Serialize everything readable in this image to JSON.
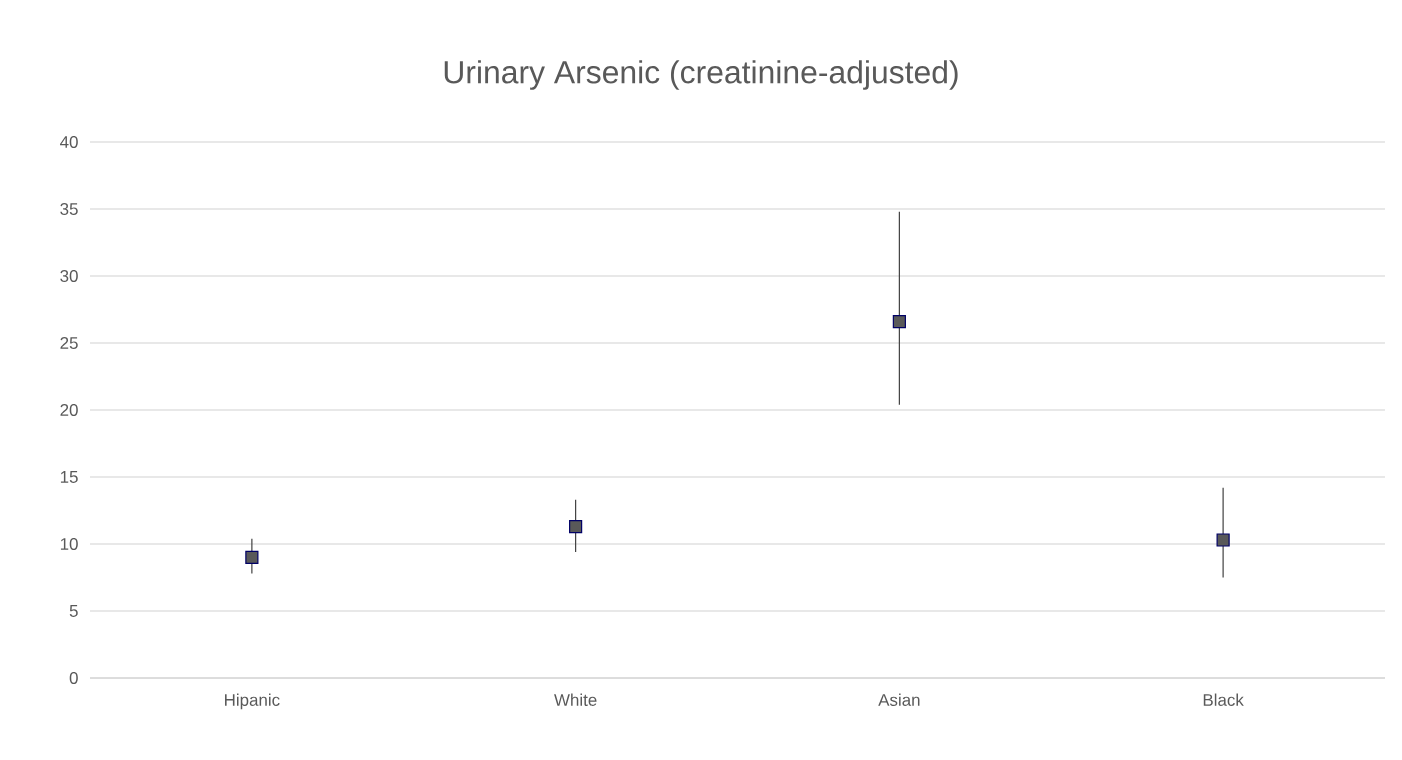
{
  "chart_data": {
    "type": "scatter",
    "title": "Urinary Arsenic (creatinine-adjusted)",
    "categories": [
      "Hipanic",
      "White",
      "Asian",
      "Black"
    ],
    "values": [
      9.0,
      11.3,
      26.6,
      10.3
    ],
    "errors": [
      [
        7.8,
        10.4
      ],
      [
        9.4,
        13.3
      ],
      [
        20.4,
        34.8
      ],
      [
        7.5,
        14.2
      ]
    ],
    "color": "#595959",
    "marker": "square",
    "ylim": [
      0,
      40
    ],
    "yticks": [
      0,
      5,
      10,
      15,
      20,
      25,
      30,
      35,
      40
    ],
    "grid": "y"
  }
}
